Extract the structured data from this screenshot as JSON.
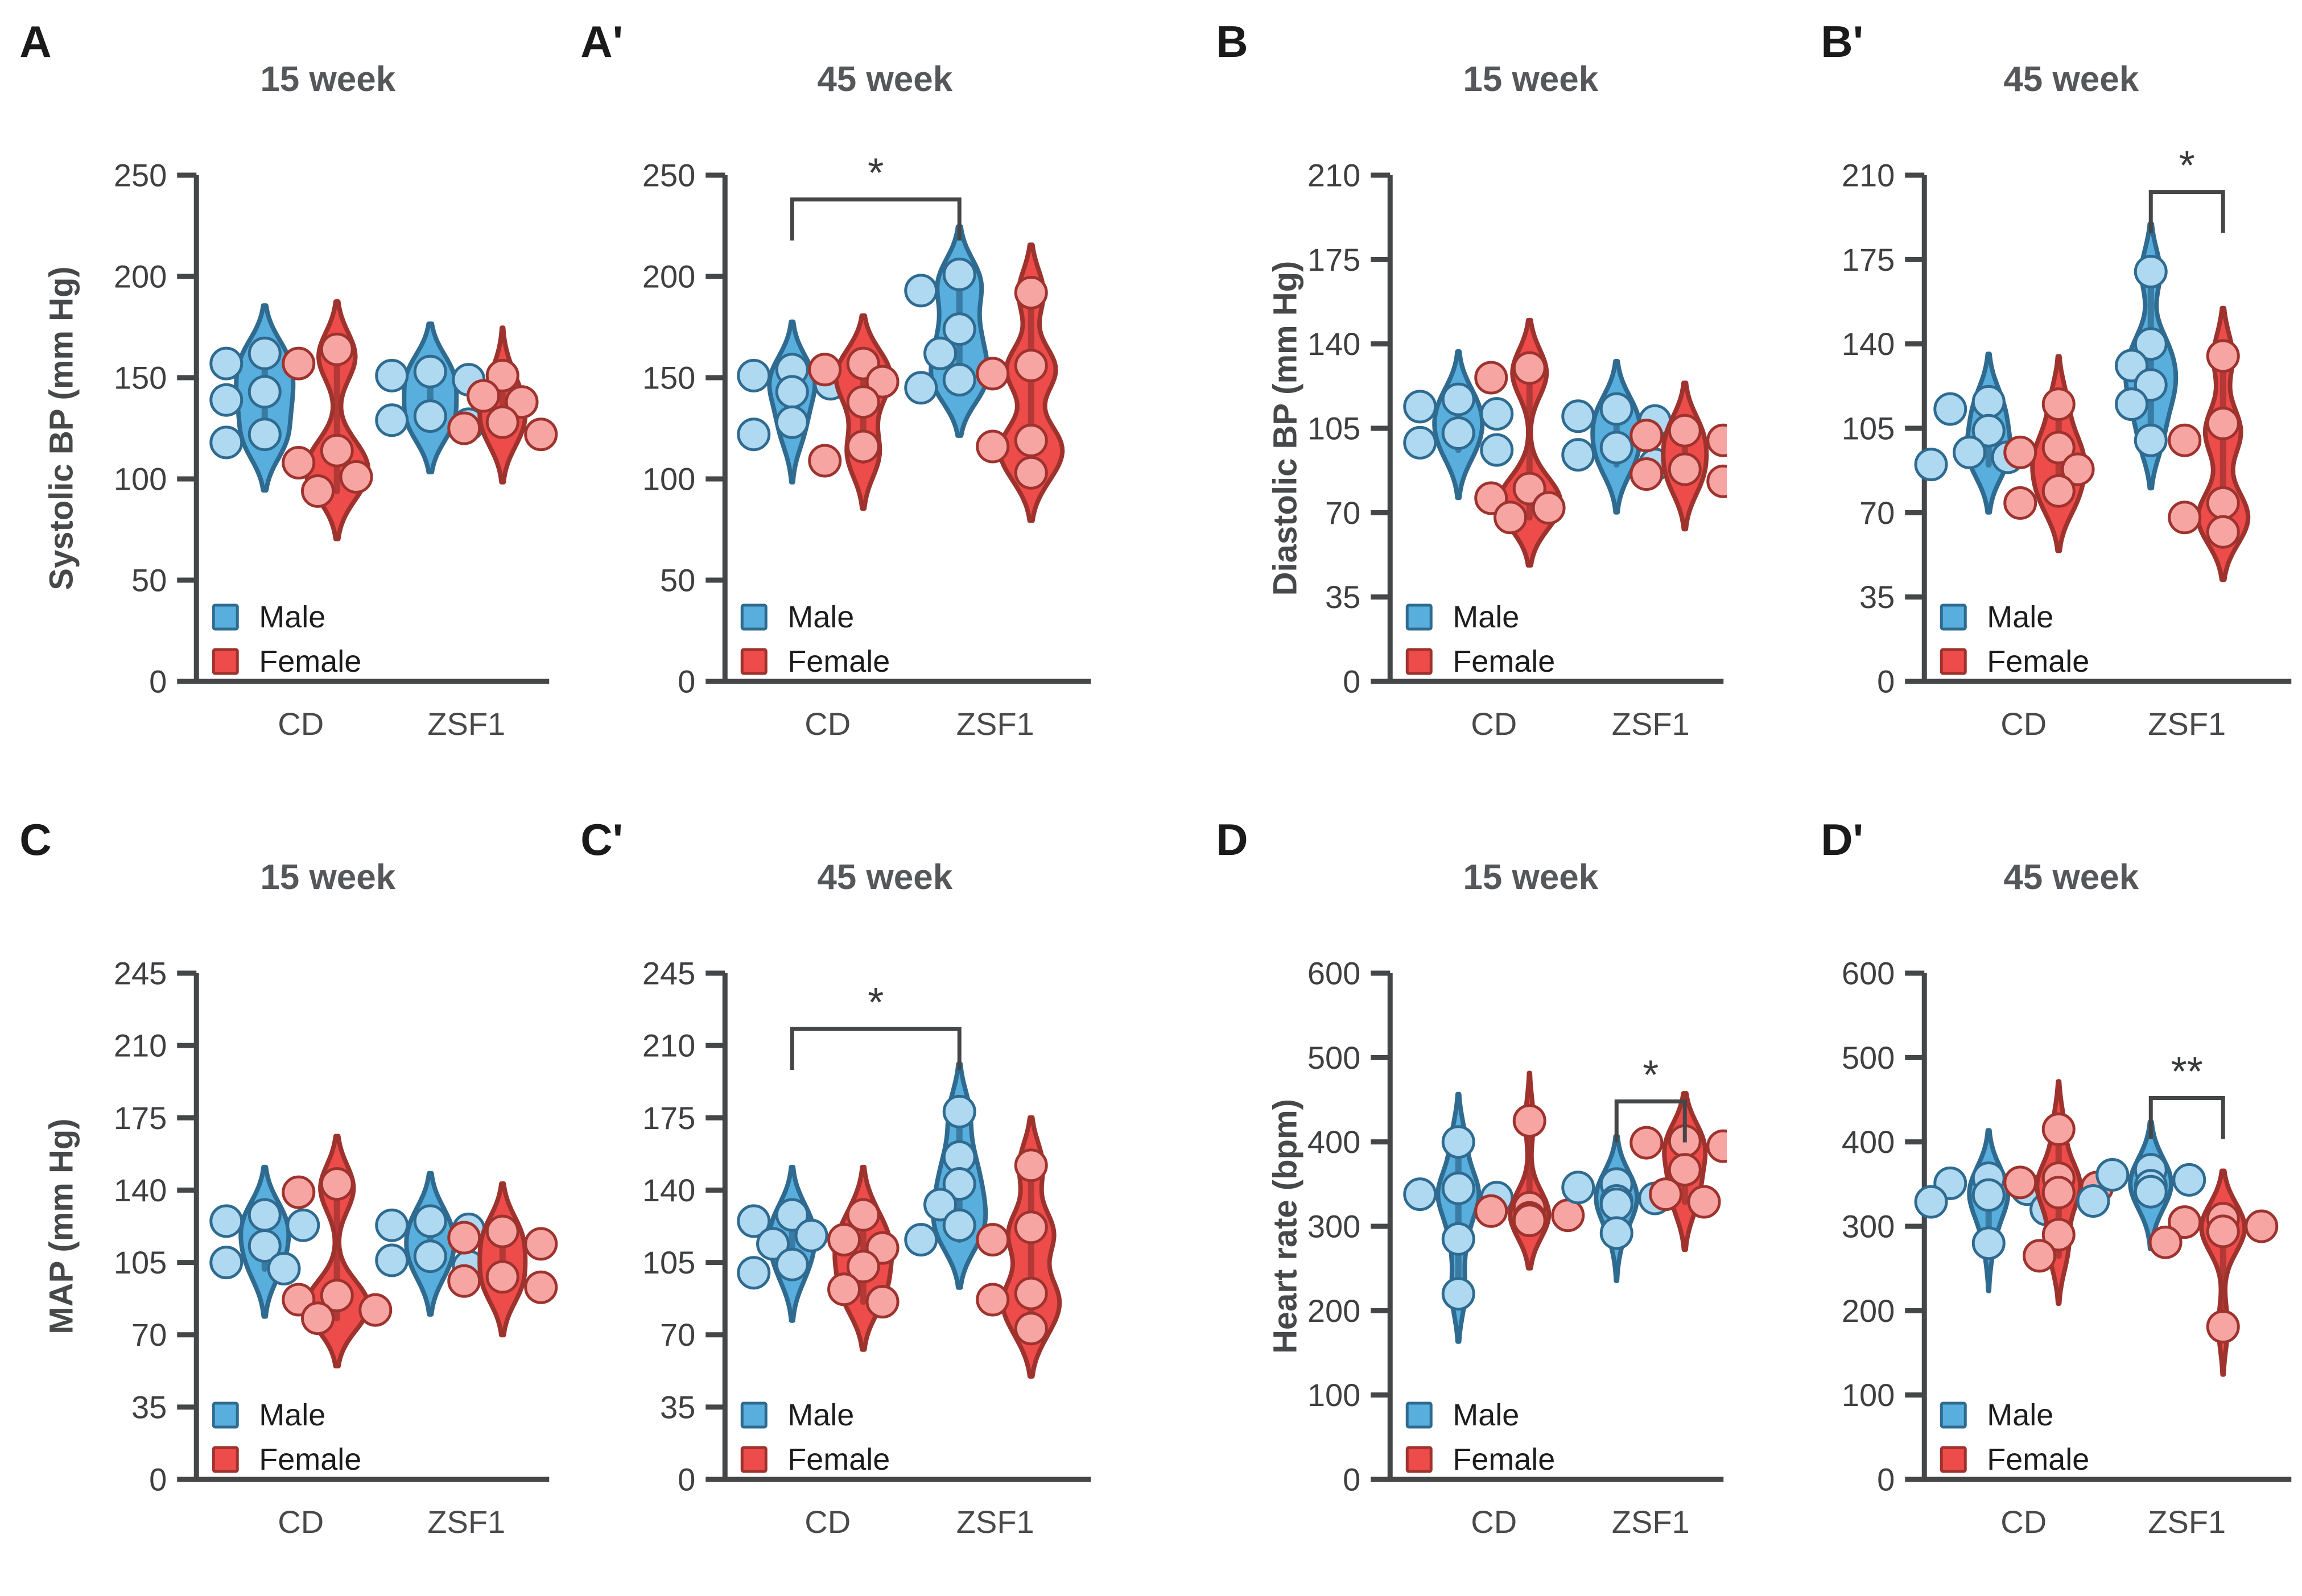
{
  "figure": {
    "legend": {
      "male_label": "Male",
      "female_label": "Female"
    },
    "colors": {
      "male_fill": "#58aedc",
      "male_stroke": "#2f6b90",
      "male_point_fill": "#afd8f1",
      "female_fill": "#ee4b4b",
      "female_stroke": "#9e332e",
      "female_point_fill": "#f7a5a3",
      "axis": "#454647",
      "tick_text": "#3e3f41",
      "title_text": "#55575a",
      "letter_text": "#1a1a1a"
    },
    "categories": [
      "CD",
      "ZSF1"
    ]
  },
  "chart_data": [
    {
      "type": "violin",
      "panel": "A",
      "title": "15 week",
      "ylabel": "Systolic BP (mm Hg)",
      "xlabel": "",
      "ylim": [
        0,
        250
      ],
      "yticks": [
        0,
        50,
        100,
        150,
        200,
        250
      ],
      "categories": [
        "CD",
        "ZSF1"
      ],
      "series": [
        {
          "name": "CD Male",
          "sex": "male",
          "values": [
            162,
            157,
            143,
            139,
            122,
            118
          ],
          "halfw": 50
        },
        {
          "name": "CD Female",
          "sex": "female",
          "values": [
            164,
            157,
            114,
            108,
            101,
            94
          ],
          "halfw": 55
        },
        {
          "name": "ZSF1 Male",
          "sex": "male",
          "values": [
            153,
            151,
            149,
            131,
            129,
            127
          ],
          "halfw": 46
        },
        {
          "name": "ZSF1 Female",
          "sex": "female",
          "values": [
            151,
            141,
            138,
            128,
            125,
            122
          ],
          "halfw": 40
        }
      ],
      "significance": null
    },
    {
      "type": "violin",
      "panel": "A'",
      "title": "45 week",
      "ylabel": "",
      "xlabel": "",
      "ylim": [
        0,
        250
      ],
      "yticks": [
        0,
        50,
        100,
        150,
        200,
        250
      ],
      "categories": [
        "CD",
        "ZSF1"
      ],
      "series": [
        {
          "name": "CD Male",
          "sex": "male",
          "values": [
            154,
            151,
            147,
            143,
            128,
            122
          ],
          "halfw": 40
        },
        {
          "name": "CD Female",
          "sex": "female",
          "values": [
            157,
            154,
            148,
            138,
            116,
            109
          ],
          "halfw": 48
        },
        {
          "name": "ZSF1 Male",
          "sex": "male",
          "values": [
            201,
            193,
            174,
            162,
            149,
            145
          ],
          "halfw": 50
        },
        {
          "name": "ZSF1 Female",
          "sex": "female",
          "values": [
            192,
            156,
            152,
            119,
            116,
            103
          ],
          "halfw": 55
        }
      ],
      "significance": {
        "pair": [
          0,
          2
        ],
        "y": 238,
        "label": "*"
      }
    },
    {
      "type": "violin",
      "panel": "B",
      "title": "15 week",
      "ylabel": "Diastolic BP (mm Hg)",
      "xlabel": "",
      "ylim": [
        0,
        210
      ],
      "yticks": [
        0,
        35,
        70,
        105,
        140,
        175,
        210
      ],
      "categories": [
        "CD",
        "ZSF1"
      ],
      "series": [
        {
          "name": "CD Male",
          "sex": "male",
          "values": [
            117,
            114,
            111,
            103,
            99,
            96
          ],
          "halfw": 42
        },
        {
          "name": "CD Female",
          "sex": "female",
          "values": [
            130,
            126,
            80,
            76,
            72,
            68
          ],
          "halfw": 55
        },
        {
          "name": "ZSF1 Male",
          "sex": "male",
          "values": [
            113,
            110,
            108,
            97,
            94,
            90
          ],
          "halfw": 42
        },
        {
          "name": "ZSF1 Female",
          "sex": "female",
          "values": [
            104,
            102,
            100,
            88,
            86,
            83
          ],
          "halfw": 38
        }
      ],
      "significance": null
    },
    {
      "type": "violin",
      "panel": "B'",
      "title": "45 week",
      "ylabel": "",
      "xlabel": "",
      "ylim": [
        0,
        210
      ],
      "yticks": [
        0,
        35,
        70,
        105,
        140,
        175,
        210
      ],
      "categories": [
        "CD",
        "ZSF1"
      ],
      "series": [
        {
          "name": "CD Male",
          "sex": "male",
          "values": [
            116,
            113,
            104,
            95,
            93,
            90
          ],
          "halfw": 38
        },
        {
          "name": "CD Female",
          "sex": "female",
          "values": [
            115,
            97,
            95,
            88,
            79,
            74
          ],
          "halfw": 46
        },
        {
          "name": "ZSF1 Male",
          "sex": "male",
          "values": [
            170,
            140,
            131,
            123,
            115,
            100
          ],
          "halfw": 44
        },
        {
          "name": "ZSF1 Female",
          "sex": "female",
          "values": [
            135,
            107,
            100,
            74,
            68,
            62
          ],
          "halfw": 44
        }
      ],
      "significance": {
        "pair": [
          2,
          3
        ],
        "y": 203,
        "label": "*"
      }
    },
    {
      "type": "violin",
      "panel": "C",
      "title": "15 week",
      "ylabel": "MAP (mm Hg)",
      "xlabel": "",
      "ylim": [
        0,
        245
      ],
      "yticks": [
        0,
        35,
        70,
        105,
        140,
        175,
        210,
        245
      ],
      "categories": [
        "CD",
        "ZSF1"
      ],
      "series": [
        {
          "name": "CD Male",
          "sex": "male",
          "values": [
            128,
            125,
            123,
            113,
            105,
            102
          ],
          "halfw": 42
        },
        {
          "name": "CD Female",
          "sex": "female",
          "values": [
            143,
            139,
            89,
            87,
            82,
            78
          ],
          "halfw": 55
        },
        {
          "name": "ZSF1 Male",
          "sex": "male",
          "values": [
            125,
            123,
            121,
            108,
            106,
            103
          ],
          "halfw": 42
        },
        {
          "name": "ZSF1 Female",
          "sex": "female",
          "values": [
            120,
            117,
            114,
            98,
            96,
            93
          ],
          "halfw": 40
        }
      ],
      "significance": null
    },
    {
      "type": "violin",
      "panel": "C'",
      "title": "45 week",
      "ylabel": "",
      "xlabel": "",
      "ylim": [
        0,
        245
      ],
      "yticks": [
        0,
        35,
        70,
        105,
        140,
        175,
        210,
        245
      ],
      "categories": [
        "CD",
        "ZSF1"
      ],
      "series": [
        {
          "name": "CD Male",
          "sex": "male",
          "values": [
            128,
            125,
            118,
            114,
            104,
            100
          ],
          "halfw": 40
        },
        {
          "name": "CD Female",
          "sex": "female",
          "values": [
            128,
            116,
            112,
            103,
            92,
            86
          ],
          "halfw": 50
        },
        {
          "name": "ZSF1 Male",
          "sex": "male",
          "values": [
            178,
            156,
            143,
            133,
            123,
            116
          ],
          "halfw": 46
        },
        {
          "name": "ZSF1 Female",
          "sex": "female",
          "values": [
            152,
            122,
            116,
            90,
            87,
            73
          ],
          "halfw": 50
        }
      ],
      "significance": {
        "pair": [
          0,
          2
        ],
        "y": 218,
        "label": "*"
      }
    },
    {
      "type": "violin",
      "panel": "D",
      "title": "15 week",
      "ylabel": "Heart rate (bpm)",
      "xlabel": "",
      "ylim": [
        0,
        600
      ],
      "yticks": [
        0,
        100,
        200,
        300,
        400,
        500,
        600
      ],
      "categories": [
        "CD",
        "ZSF1"
      ],
      "series": [
        {
          "name": "CD Male",
          "sex": "male",
          "values": [
            400,
            345,
            338,
            334,
            285,
            220
          ],
          "halfw": 36
        },
        {
          "name": "CD Female",
          "sex": "female",
          "values": [
            425,
            322,
            318,
            313,
            310,
            307
          ],
          "halfw": 34
        },
        {
          "name": "ZSF1 Male",
          "sex": "male",
          "values": [
            350,
            346,
            333,
            330,
            326,
            292
          ],
          "halfw": 36
        },
        {
          "name": "ZSF1 Female",
          "sex": "female",
          "values": [
            401,
            399,
            395,
            367,
            338,
            329
          ],
          "halfw": 36
        }
      ],
      "significance": {
        "pair": [
          2,
          3
        ],
        "y": 448,
        "label": "*"
      }
    },
    {
      "type": "violin",
      "panel": "D'",
      "title": "45 week",
      "ylabel": "",
      "xlabel": "",
      "ylim": [
        0,
        600
      ],
      "yticks": [
        0,
        100,
        200,
        300,
        400,
        500,
        600
      ],
      "categories": [
        "CD",
        "ZSF1"
      ],
      "series": [
        {
          "name": "CD Male",
          "sex": "male",
          "values": [
            357,
            351,
            344,
            337,
            329,
            320,
            280
          ],
          "halfw": 34
        },
        {
          "name": "CD Female",
          "sex": "female",
          "values": [
            415,
            357,
            352,
            346,
            340,
            290,
            265
          ],
          "halfw": 38
        },
        {
          "name": "ZSF1 Male",
          "sex": "male",
          "values": [
            367,
            361,
            355,
            348,
            341,
            330
          ],
          "halfw": 36
        },
        {
          "name": "ZSF1 Female",
          "sex": "female",
          "values": [
            309,
            305,
            300,
            294,
            281,
            181
          ],
          "halfw": 38
        }
      ],
      "significance": {
        "pair": [
          2,
          3
        ],
        "y": 452,
        "label": "**"
      }
    }
  ]
}
